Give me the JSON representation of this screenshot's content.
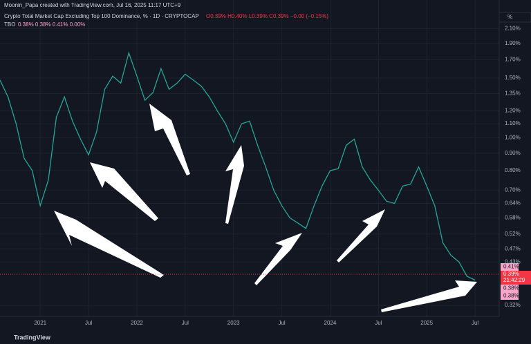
{
  "header": {
    "credit": "Moonin_Papa created with TradingView.com, Jul 16, 2025 11:17 UTC+9",
    "ohlc": "O0.39% H0.40% L0.39% C0.39% −0.00 (−0.15%)",
    "indicator": "TBO",
    "indicator_values": "0.38% 0.38% 0.41% 0.00%",
    "axis_unit": "%",
    "logo": "TradingView"
  },
  "chart_data": {
    "type": "line",
    "title": "Crypto Total Market Cap Excluding Top 100 Dominance, % · 1D · CRYPTOCAP",
    "log_scale": true,
    "grid": true,
    "series": [
      {
        "name": "CRYPTOCAP",
        "color": "#26a69a",
        "x": [
          "2020-08",
          "2020-09",
          "2020-10",
          "2020-11",
          "2020-12",
          "2021-01",
          "2021-02",
          "2021-03",
          "2021-04",
          "2021-05",
          "2021-06",
          "2021-07",
          "2021-08",
          "2021-09",
          "2021-10",
          "2021-11",
          "2021-12",
          "2022-01",
          "2022-02",
          "2022-03",
          "2022-04",
          "2022-05",
          "2022-06",
          "2022-07",
          "2022-08",
          "2022-09",
          "2022-10",
          "2022-11",
          "2022-12",
          "2023-01",
          "2023-02",
          "2023-03",
          "2023-04",
          "2023-05",
          "2023-06",
          "2023-07",
          "2023-08",
          "2023-09",
          "2023-10",
          "2023-11",
          "2023-12",
          "2024-01",
          "2024-02",
          "2024-03",
          "2024-04",
          "2024-05",
          "2024-06",
          "2024-07",
          "2024-08",
          "2024-09",
          "2024-10",
          "2024-11",
          "2024-12",
          "2025-01",
          "2025-02",
          "2025-03",
          "2025-04",
          "2025-05",
          "2025-06",
          "2025-07"
        ],
        "values": [
          1.48,
          1.32,
          1.1,
          0.87,
          0.8,
          0.63,
          0.75,
          1.15,
          1.32,
          1.12,
          0.99,
          0.89,
          1.04,
          1.39,
          1.52,
          1.45,
          1.78,
          1.52,
          1.29,
          1.36,
          1.6,
          1.39,
          1.45,
          1.54,
          1.48,
          1.42,
          1.32,
          1.2,
          1.1,
          0.97,
          1.1,
          1.12,
          0.95,
          0.82,
          0.7,
          0.63,
          0.58,
          0.56,
          0.54,
          0.63,
          0.72,
          0.8,
          0.81,
          0.95,
          0.99,
          0.82,
          0.75,
          0.7,
          0.65,
          0.64,
          0.72,
          0.73,
          0.82,
          0.72,
          0.63,
          0.49,
          0.45,
          0.43,
          0.39,
          0.38
        ]
      }
    ],
    "xlim": [
      "2020-08",
      "2025-10"
    ],
    "xticks": [
      {
        "value": "2021-01",
        "label": "2021"
      },
      {
        "value": "2021-07",
        "label": "Jul"
      },
      {
        "value": "2022-01",
        "label": "2022"
      },
      {
        "value": "2022-07",
        "label": "Jul"
      },
      {
        "value": "2023-01",
        "label": "2023"
      },
      {
        "value": "2023-07",
        "label": "Jul"
      },
      {
        "value": "2024-01",
        "label": "2024"
      },
      {
        "value": "2024-07",
        "label": "Jul"
      },
      {
        "value": "2025-01",
        "label": "2025"
      },
      {
        "value": "2025-07",
        "label": "Jul"
      }
    ],
    "ylim": [
      0.297,
      2.55
    ],
    "yticks": [
      {
        "value": 2.1,
        "label": "2.10%"
      },
      {
        "value": 1.9,
        "label": "1.90%"
      },
      {
        "value": 1.7,
        "label": "1.70%"
      },
      {
        "value": 1.5,
        "label": "1.50%"
      },
      {
        "value": 1.35,
        "label": "1.35%"
      },
      {
        "value": 1.2,
        "label": "1.20%"
      },
      {
        "value": 1.1,
        "label": "1.10%"
      },
      {
        "value": 1,
        "label": "1.00%"
      },
      {
        "value": 0.9,
        "label": "0.90%"
      },
      {
        "value": 0.8,
        "label": "0.80%"
      },
      {
        "value": 0.7,
        "label": "0.70%"
      },
      {
        "value": 0.64,
        "label": "0.64%"
      },
      {
        "value": 0.58,
        "label": "0.58%"
      },
      {
        "value": 0.52,
        "label": "0.52%"
      },
      {
        "value": 0.47,
        "label": "0.47%"
      },
      {
        "value": 0.43,
        "label": "0.43%"
      },
      {
        "value": 0.32,
        "label": "0.32%"
      }
    ],
    "price_tags": [
      "0.41%",
      "0.39%",
      "21:42:29",
      "0.38%",
      "0.38%"
    ]
  }
}
